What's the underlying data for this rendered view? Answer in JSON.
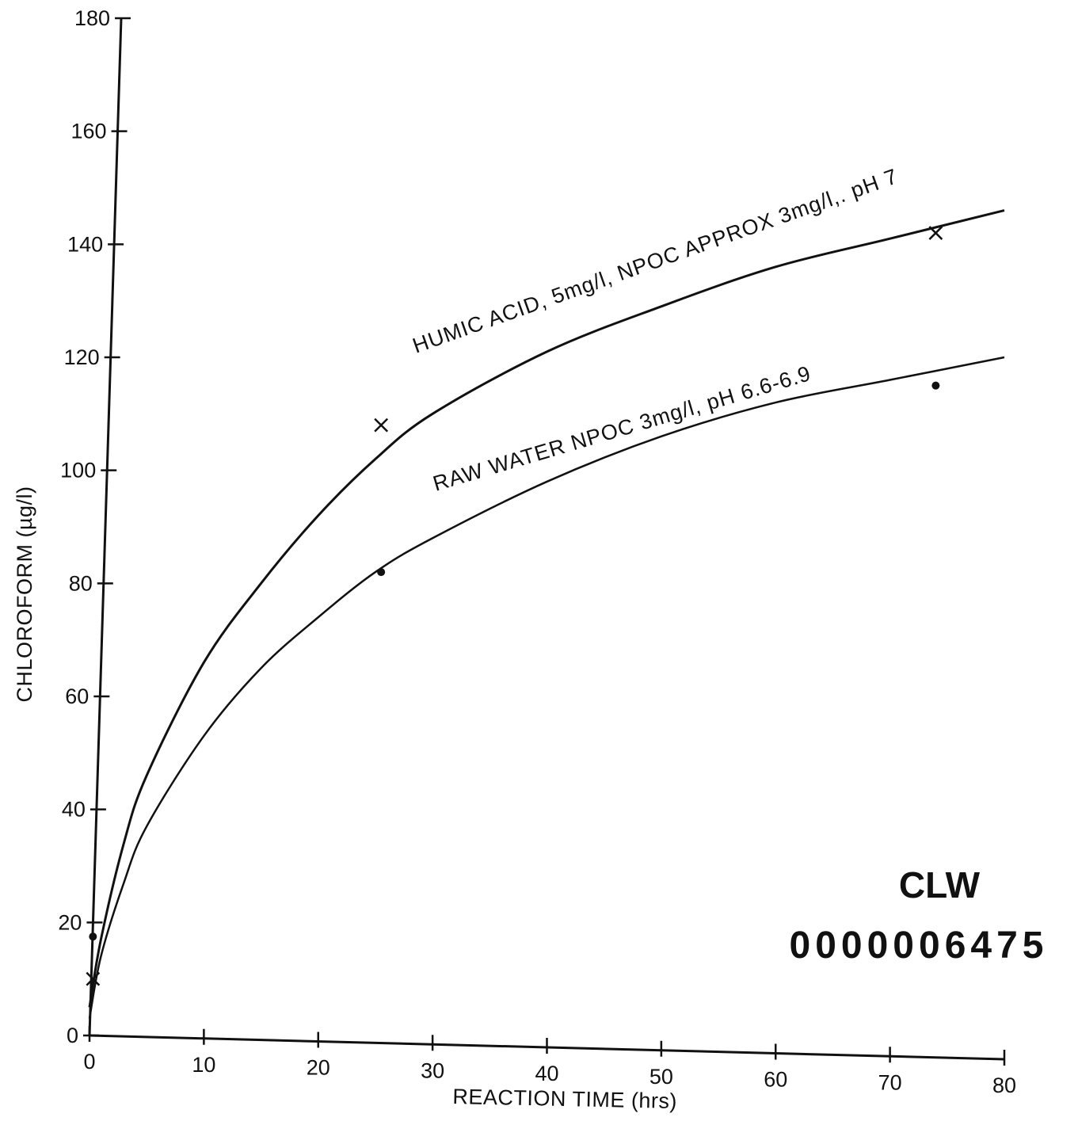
{
  "chart_data": {
    "type": "line",
    "title": "",
    "xlabel": "REACTION TIME (hrs)",
    "ylabel": "CHLOROFORM (µg/l)",
    "xlim": [
      0,
      80
    ],
    "ylim": [
      0,
      180
    ],
    "x_ticks": [
      0,
      10,
      20,
      30,
      40,
      50,
      60,
      70,
      80
    ],
    "y_ticks": [
      0,
      20,
      40,
      60,
      80,
      100,
      120,
      140,
      160,
      180
    ],
    "grid": false,
    "legend": "none",
    "series": [
      {
        "name": "HUMIC ACID, 5mg/l, NPOC APPROX 3mg/l,. pH 7",
        "marker": "x",
        "points": [
          {
            "x": 0.3,
            "y": 10
          },
          {
            "x": 25.5,
            "y": 108
          },
          {
            "x": 74,
            "y": 142
          }
        ],
        "fit_curve": [
          {
            "x": 0,
            "y": 5
          },
          {
            "x": 1,
            "y": 17
          },
          {
            "x": 3,
            "y": 34
          },
          {
            "x": 5,
            "y": 46
          },
          {
            "x": 10,
            "y": 66
          },
          {
            "x": 15,
            "y": 80
          },
          {
            "x": 20,
            "y": 92
          },
          {
            "x": 25,
            "y": 102
          },
          {
            "x": 30,
            "y": 110
          },
          {
            "x": 40,
            "y": 121
          },
          {
            "x": 50,
            "y": 129
          },
          {
            "x": 60,
            "y": 136
          },
          {
            "x": 70,
            "y": 141
          },
          {
            "x": 80,
            "y": 146
          }
        ]
      },
      {
        "name": "RAW WATER NPOC 3mg/l, pH 6.6-6.9",
        "marker": "dot",
        "points": [
          {
            "x": 0.3,
            "y": 17.5
          },
          {
            "x": 25.5,
            "y": 82
          },
          {
            "x": 74,
            "y": 115
          }
        ],
        "fit_curve": [
          {
            "x": 0,
            "y": 3
          },
          {
            "x": 1,
            "y": 14
          },
          {
            "x": 3,
            "y": 27
          },
          {
            "x": 5,
            "y": 37
          },
          {
            "x": 10,
            "y": 53
          },
          {
            "x": 15,
            "y": 65
          },
          {
            "x": 20,
            "y": 74
          },
          {
            "x": 25,
            "y": 82
          },
          {
            "x": 30,
            "y": 88
          },
          {
            "x": 40,
            "y": 98
          },
          {
            "x": 50,
            "y": 106
          },
          {
            "x": 60,
            "y": 112
          },
          {
            "x": 70,
            "y": 116
          },
          {
            "x": 80,
            "y": 120
          }
        ]
      }
    ]
  },
  "stamp": {
    "code": "CLW",
    "number": "0000006475"
  }
}
